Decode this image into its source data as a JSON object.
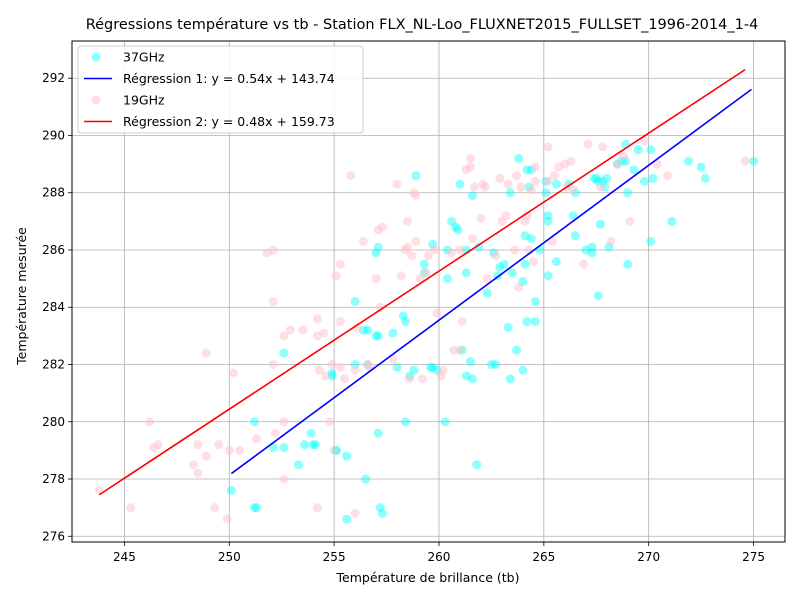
{
  "chart_data": {
    "type": "scatter",
    "title": "Régressions température vs tb - Station FLX_NL-Loo_FLUXNET2015_FULLSET_1996-2014_1-4",
    "xlabel": "Température de brillance (tb)",
    "ylabel": "Température mesurée",
    "xlim": [
      242.5,
      276.5
    ],
    "ylim": [
      275.8,
      293.3
    ],
    "xticks": [
      245,
      250,
      255,
      260,
      265,
      270,
      275
    ],
    "yticks": [
      276,
      278,
      280,
      282,
      284,
      286,
      288,
      290,
      292
    ],
    "grid": true,
    "legend_position": "top-left",
    "series": [
      {
        "name": "37GHz",
        "kind": "scatter",
        "color": "#00ffff",
        "points": [
          [
            250.1,
            277.6
          ],
          [
            251.2,
            277.0
          ],
          [
            251.3,
            277.0
          ],
          [
            251.2,
            280.0
          ],
          [
            252.1,
            279.1
          ],
          [
            252.6,
            279.1
          ],
          [
            252.6,
            282.4
          ],
          [
            253.3,
            278.5
          ],
          [
            253.6,
            279.2
          ],
          [
            253.9,
            279.6
          ],
          [
            254.0,
            279.2
          ],
          [
            254.1,
            279.2
          ],
          [
            254.9,
            281.6
          ],
          [
            254.9,
            281.7
          ],
          [
            255.1,
            279.0
          ],
          [
            255.1,
            279.0
          ],
          [
            255.6,
            278.8
          ],
          [
            255.6,
            276.6
          ],
          [
            256.0,
            282.0
          ],
          [
            256.0,
            284.2
          ],
          [
            256.4,
            283.2
          ],
          [
            256.6,
            283.2
          ],
          [
            256.6,
            282.0
          ],
          [
            256.5,
            278.0
          ],
          [
            257.0,
            283.0
          ],
          [
            257.1,
            279.6
          ],
          [
            257.0,
            285.9
          ],
          [
            257.1,
            286.1
          ],
          [
            257.1,
            283.0
          ],
          [
            257.2,
            277.0
          ],
          [
            257.3,
            276.8
          ],
          [
            257.8,
            283.1
          ],
          [
            258.0,
            281.9
          ],
          [
            258.3,
            283.7
          ],
          [
            258.4,
            283.5
          ],
          [
            258.4,
            280.0
          ],
          [
            258.6,
            281.6
          ],
          [
            258.8,
            281.8
          ],
          [
            258.9,
            288.6
          ],
          [
            259.3,
            285.5
          ],
          [
            259.3,
            285.2
          ],
          [
            259.6,
            281.9
          ],
          [
            259.7,
            281.9
          ],
          [
            259.7,
            286.2
          ],
          [
            259.9,
            281.8
          ],
          [
            260.3,
            280.0
          ],
          [
            260.4,
            286.0
          ],
          [
            260.4,
            285.0
          ],
          [
            260.6,
            287.0
          ],
          [
            260.8,
            286.8
          ],
          [
            261.0,
            288.3
          ],
          [
            261.1,
            282.5
          ],
          [
            261.3,
            281.6
          ],
          [
            261.3,
            285.2
          ],
          [
            261.3,
            286.0
          ],
          [
            261.5,
            282.1
          ],
          [
            261.6,
            281.5
          ],
          [
            261.6,
            287.9
          ],
          [
            261.8,
            278.5
          ],
          [
            261.9,
            286.1
          ],
          [
            262.3,
            284.5
          ],
          [
            262.5,
            282.0
          ],
          [
            262.7,
            282.0
          ],
          [
            262.8,
            285.1
          ],
          [
            262.9,
            285.4
          ],
          [
            263.1,
            285.5
          ],
          [
            263.3,
            283.3
          ],
          [
            263.4,
            281.5
          ],
          [
            263.4,
            288.0
          ],
          [
            263.5,
            285.2
          ],
          [
            263.7,
            282.5
          ],
          [
            263.8,
            289.2
          ],
          [
            264.0,
            284.9
          ],
          [
            264.0,
            281.8
          ],
          [
            264.1,
            285.5
          ],
          [
            264.1,
            286.5
          ],
          [
            264.2,
            283.5
          ],
          [
            264.2,
            288.8
          ],
          [
            264.3,
            288.2
          ],
          [
            264.4,
            286.4
          ],
          [
            264.4,
            288.8
          ],
          [
            264.6,
            283.5
          ],
          [
            264.6,
            284.2
          ],
          [
            264.8,
            286.0
          ],
          [
            265.1,
            288.0
          ],
          [
            265.1,
            288.4
          ],
          [
            265.2,
            285.1
          ],
          [
            265.2,
            287.0
          ],
          [
            265.2,
            287.2
          ],
          [
            265.6,
            288.3
          ],
          [
            266.2,
            288.3
          ],
          [
            266.4,
            287.2
          ],
          [
            266.5,
            286.5
          ],
          [
            266.5,
            288.0
          ],
          [
            267.0,
            286.0
          ],
          [
            267.3,
            285.9
          ],
          [
            267.3,
            286.1
          ],
          [
            267.4,
            288.5
          ],
          [
            267.5,
            288.5
          ],
          [
            267.6,
            288.4
          ],
          [
            267.6,
            284.4
          ],
          [
            267.7,
            286.9
          ],
          [
            267.8,
            288.4
          ],
          [
            267.9,
            288.2
          ],
          [
            268.0,
            288.5
          ],
          [
            268.1,
            286.1
          ],
          [
            268.5,
            289.0
          ],
          [
            268.7,
            289.1
          ],
          [
            268.9,
            289.1
          ],
          [
            268.9,
            289.7
          ],
          [
            269.0,
            285.5
          ],
          [
            269.0,
            288.0
          ],
          [
            269.3,
            288.8
          ],
          [
            269.5,
            289.5
          ],
          [
            269.8,
            288.4
          ],
          [
            270.1,
            289.5
          ],
          [
            270.1,
            286.3
          ],
          [
            270.2,
            288.5
          ],
          [
            271.1,
            287.0
          ],
          [
            271.9,
            289.1
          ],
          [
            272.5,
            288.9
          ],
          [
            272.7,
            288.5
          ],
          [
            275.0,
            289.1
          ],
          [
            262.6,
            285.9
          ],
          [
            265.6,
            285.6
          ],
          [
            260.9,
            286.7
          ]
        ]
      },
      {
        "name": "Régression 1: y = 0.54x + 143.74",
        "kind": "line",
        "color": "#0000ff",
        "x": [
          250.1,
          274.9
        ],
        "y": [
          278.19,
          291.61
        ]
      },
      {
        "name": "19GHz",
        "kind": "scatter",
        "color": "#ffc0cb",
        "points": [
          [
            243.8,
            277.6
          ],
          [
            245.3,
            277.0
          ],
          [
            246.2,
            280.0
          ],
          [
            246.4,
            279.1
          ],
          [
            246.6,
            279.2
          ],
          [
            248.3,
            278.5
          ],
          [
            248.5,
            279.2
          ],
          [
            248.5,
            278.2
          ],
          [
            248.9,
            282.4
          ],
          [
            248.9,
            278.8
          ],
          [
            249.3,
            277.0
          ],
          [
            249.5,
            279.2
          ],
          [
            249.9,
            276.6
          ],
          [
            250.0,
            279.0
          ],
          [
            250.2,
            281.7
          ],
          [
            250.5,
            279.0
          ],
          [
            251.3,
            279.4
          ],
          [
            251.8,
            285.9
          ],
          [
            252.1,
            286.0
          ],
          [
            252.1,
            284.2
          ],
          [
            252.1,
            282.0
          ],
          [
            252.2,
            279.6
          ],
          [
            252.6,
            280.0
          ],
          [
            252.6,
            283.0
          ],
          [
            252.6,
            278.0
          ],
          [
            252.9,
            283.2
          ],
          [
            253.5,
            283.2
          ],
          [
            254.2,
            283.6
          ],
          [
            254.2,
            283.0
          ],
          [
            254.2,
            277.0
          ],
          [
            254.3,
            281.8
          ],
          [
            254.5,
            283.1
          ],
          [
            254.6,
            281.6
          ],
          [
            254.8,
            280.0
          ],
          [
            254.9,
            282.0
          ],
          [
            255.0,
            279.0
          ],
          [
            255.1,
            285.1
          ],
          [
            255.3,
            285.5
          ],
          [
            255.3,
            283.5
          ],
          [
            255.3,
            281.9
          ],
          [
            255.5,
            281.5
          ],
          [
            255.8,
            288.6
          ],
          [
            256.0,
            281.8
          ],
          [
            256.0,
            276.8
          ],
          [
            256.4,
            286.3
          ],
          [
            256.6,
            282.0
          ],
          [
            256.7,
            281.9
          ],
          [
            257.0,
            285.0
          ],
          [
            257.1,
            286.7
          ],
          [
            257.2,
            284.0
          ],
          [
            257.3,
            286.8
          ],
          [
            257.8,
            282.2
          ],
          [
            258.0,
            288.3
          ],
          [
            258.2,
            285.1
          ],
          [
            258.4,
            286.0
          ],
          [
            258.5,
            287.0
          ],
          [
            258.5,
            286.1
          ],
          [
            258.6,
            281.5
          ],
          [
            258.7,
            285.8
          ],
          [
            258.8,
            288.0
          ],
          [
            258.9,
            287.9
          ],
          [
            258.9,
            286.3
          ],
          [
            259.1,
            285.0
          ],
          [
            259.2,
            281.5
          ],
          [
            259.4,
            285.2
          ],
          [
            259.5,
            285.8
          ],
          [
            259.8,
            286.0
          ],
          [
            260.1,
            281.6
          ],
          [
            260.2,
            281.8
          ],
          [
            260.6,
            285.9
          ],
          [
            260.7,
            282.5
          ],
          [
            261.0,
            282.5
          ],
          [
            261.0,
            286.0
          ],
          [
            261.1,
            283.5
          ],
          [
            261.3,
            288.8
          ],
          [
            261.5,
            288.9
          ],
          [
            261.5,
            289.2
          ],
          [
            261.6,
            286.4
          ],
          [
            261.7,
            288.2
          ],
          [
            262.0,
            287.1
          ],
          [
            262.1,
            288.3
          ],
          [
            262.2,
            288.2
          ],
          [
            262.3,
            285.0
          ],
          [
            262.7,
            285.8
          ],
          [
            262.9,
            288.5
          ],
          [
            263.0,
            287.0
          ],
          [
            263.2,
            287.2
          ],
          [
            263.3,
            288.3
          ],
          [
            263.6,
            286.0
          ],
          [
            263.7,
            288.6
          ],
          [
            263.9,
            288.2
          ],
          [
            264.1,
            287.0
          ],
          [
            264.2,
            287.2
          ],
          [
            264.3,
            286.0
          ],
          [
            264.4,
            288.1
          ],
          [
            264.5,
            285.6
          ],
          [
            264.6,
            288.4
          ],
          [
            264.6,
            288.9
          ],
          [
            265.2,
            288.4
          ],
          [
            265.2,
            289.6
          ],
          [
            265.4,
            286.3
          ],
          [
            265.5,
            288.6
          ],
          [
            265.7,
            288.9
          ],
          [
            266.0,
            289.0
          ],
          [
            266.1,
            288.2
          ],
          [
            266.3,
            289.1
          ],
          [
            266.4,
            288.1
          ],
          [
            266.9,
            285.5
          ],
          [
            267.1,
            289.7
          ],
          [
            267.7,
            288.2
          ],
          [
            267.8,
            289.6
          ],
          [
            268.2,
            286.3
          ],
          [
            268.5,
            289.0
          ],
          [
            268.8,
            289.3
          ],
          [
            269.1,
            287.0
          ],
          [
            269.8,
            289.8
          ],
          [
            270.4,
            289.0
          ],
          [
            270.9,
            288.6
          ],
          [
            274.6,
            289.1
          ],
          [
            256.1,
            283.3
          ],
          [
            259.9,
            283.8
          ],
          [
            263.8,
            284.7
          ]
        ]
      },
      {
        "name": "Régression 2: y = 0.48x + 159.73",
        "kind": "line",
        "color": "#ff0000",
        "x": [
          243.8,
          274.6
        ],
        "y": [
          277.45,
          292.3
        ]
      }
    ]
  }
}
